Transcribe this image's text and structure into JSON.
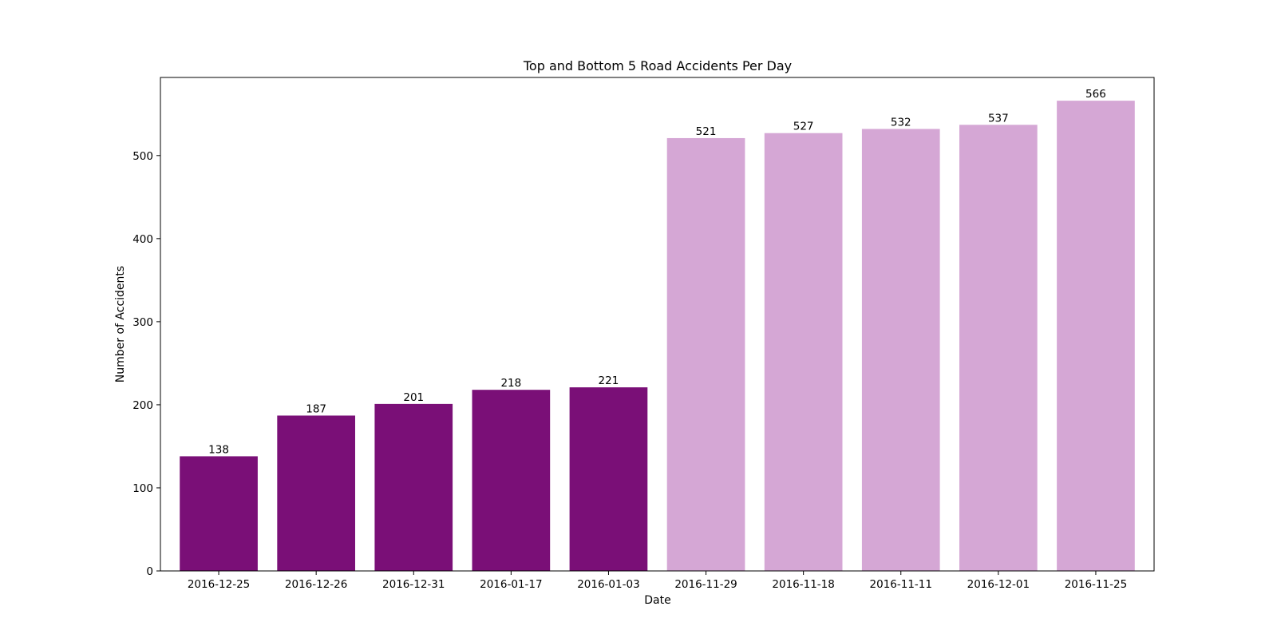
{
  "chart_data": {
    "type": "bar",
    "title": "Top and Bottom 5 Road Accidents Per Day",
    "xlabel": "Date",
    "ylabel": "Number of Accidents",
    "categories": [
      "2016-12-25",
      "2016-12-26",
      "2016-12-31",
      "2016-01-17",
      "2016-01-03",
      "2016-11-29",
      "2016-11-18",
      "2016-11-11",
      "2016-12-01",
      "2016-11-25"
    ],
    "values": [
      138,
      187,
      201,
      218,
      221,
      521,
      527,
      532,
      537,
      566
    ],
    "groups": [
      "bottom",
      "bottom",
      "bottom",
      "bottom",
      "bottom",
      "top",
      "top",
      "top",
      "top",
      "top"
    ],
    "colors": {
      "bottom": "#7a0f77",
      "top": "#d5a7d5"
    },
    "ylim": [
      0,
      594
    ],
    "yticks": [
      0,
      100,
      200,
      300,
      400,
      500
    ],
    "grid": false,
    "data_labels": true
  }
}
